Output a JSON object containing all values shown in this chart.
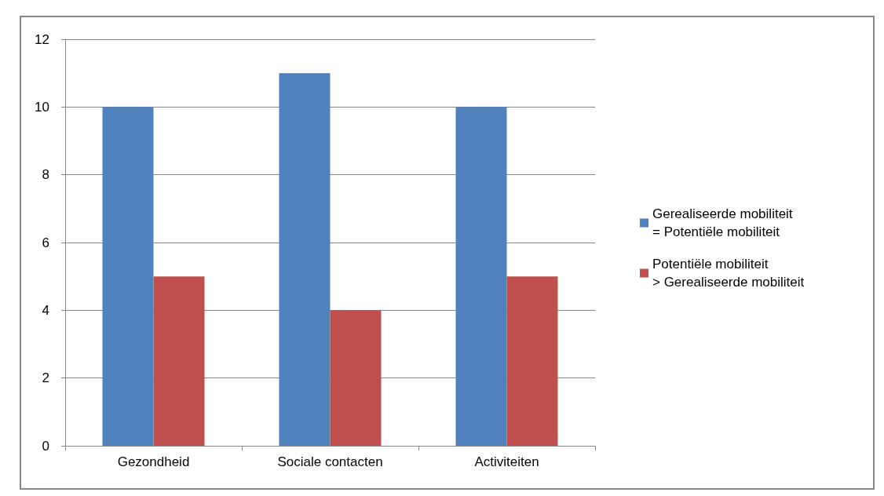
{
  "chart_data": {
    "type": "bar",
    "categories": [
      "Gezondheid",
      "Sociale contacten",
      "Activiteiten"
    ],
    "series": [
      {
        "name": "Gerealiseerde mobiliteit = Potentiële mobiliteit",
        "color": "#4f81bd",
        "values": [
          10,
          11,
          10
        ]
      },
      {
        "name": "Potentiële mobiliteit > Gerealiseerde mobiliteit",
        "color": "#c0504d",
        "values": [
          5,
          4,
          5
        ]
      }
    ],
    "ylim": [
      0,
      12
    ],
    "yticks": [
      0,
      2,
      4,
      6,
      8,
      10,
      12
    ],
    "grid": "y",
    "legend": "right"
  }
}
